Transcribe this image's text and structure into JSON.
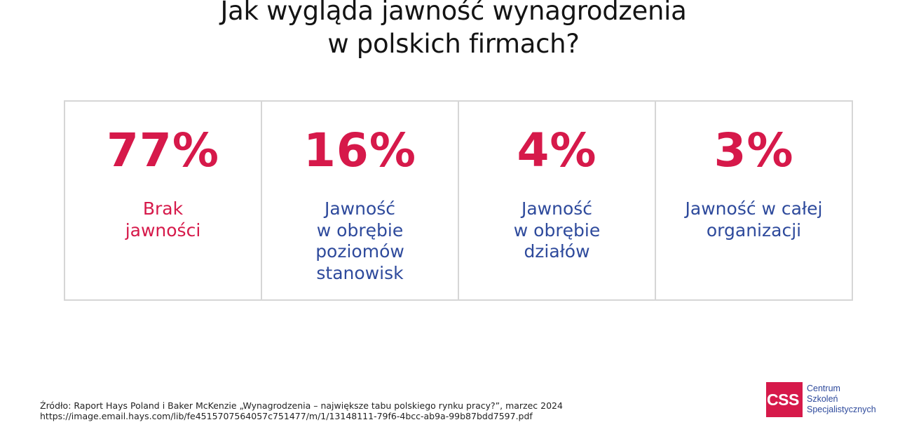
{
  "title": {
    "line1": "Jak wygląda jawność wynagrodzenia",
    "line2": "w polskich firmach?"
  },
  "cards": [
    {
      "value": "77%",
      "label_lines": [
        "Brak",
        "jawności"
      ],
      "label_color": "#d6194a"
    },
    {
      "value": "16%",
      "label_lines": [
        "Jawność",
        "w obrębie",
        "poziomów",
        "stanowisk"
      ],
      "label_color": "#2e4a9c"
    },
    {
      "value": "4%",
      "label_lines": [
        "Jawność",
        "w obrębie",
        "działów"
      ],
      "label_color": "#2e4a9c"
    },
    {
      "value": "3%",
      "label_lines": [
        "Jawność w całej",
        "organizacji"
      ],
      "label_color": "#2e4a9c"
    }
  ],
  "source": {
    "line1": "Źródło: Raport Hays Poland i Baker McKenzie „Wynagrodzenia – największe tabu polskiego rynku pracy?”, marzec 2024",
    "line2": "https://image.email.hays.com/lib/fe4515707564057c751477/m/1/13148111-79f6-4bcc-ab9a-99b87bdd7597.pdf"
  },
  "logo": {
    "mark": "CSS",
    "line1": "Centrum",
    "line2": "Szkoleń",
    "line3": "Specjalistycznych",
    "color": "#d6194a"
  },
  "colors": {
    "accent_red": "#d6194a",
    "accent_blue": "#2e4a9c"
  }
}
